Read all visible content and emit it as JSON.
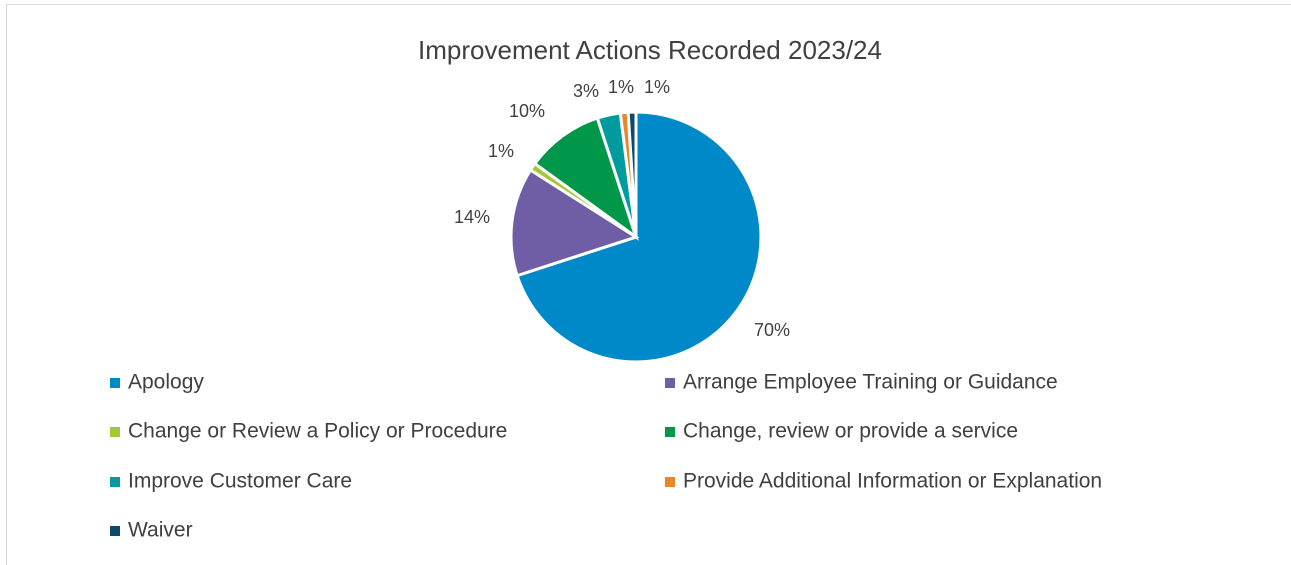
{
  "chart_data": {
    "type": "pie",
    "title": "Improvement Actions Recorded 2023/24",
    "categories": [
      "Apology",
      "Arrange Employee Training or Guidance",
      "Change or Review a Policy or Procedure",
      "Change, review or provide a service",
      "Improve Customer Care",
      "Provide Additional Information or Explanation",
      "Waiver"
    ],
    "values": [
      70,
      14,
      1,
      10,
      3,
      1,
      1
    ],
    "value_labels": [
      "70%",
      "14%",
      "1%",
      "10%",
      "3%",
      "1%",
      "1%"
    ],
    "colors": [
      "#0089c9",
      "#6f5ea6",
      "#a3c93a",
      "#00974a",
      "#009b9e",
      "#e8862a",
      "#0b4a6b"
    ],
    "legend": "bottom"
  }
}
